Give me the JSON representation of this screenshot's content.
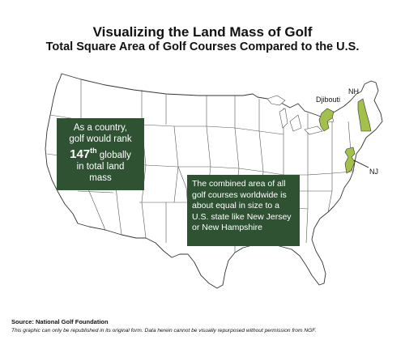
{
  "title": "Visualizing the Land Mass of Golf",
  "subtitle": "Total Square Area of Golf Courses Compared to the U.S.",
  "callout_left": {
    "line1": "As a country,",
    "line2": "golf would rank",
    "rank": "147",
    "rank_suffix": "th",
    "line3": "globally",
    "line4": "in total land",
    "line5": "mass"
  },
  "callout_right": {
    "text": "The combined area of all golf courses worldwide is about equal in size to a U.S. state like New Jersey or New Hampshire"
  },
  "labels": {
    "djibouti": "Djibouti",
    "nh": "NH",
    "nj": "NJ"
  },
  "colors": {
    "highlight": "#a3c14a",
    "callout_bg": "#2f5233",
    "state_fill": "#ffffff",
    "state_border": "#333333"
  },
  "source": "Source: National Golf Foundation",
  "disclaimer": "This graphic can only be republished in its original form. Data herein cannot be visually repurposed without permission from NGF."
}
